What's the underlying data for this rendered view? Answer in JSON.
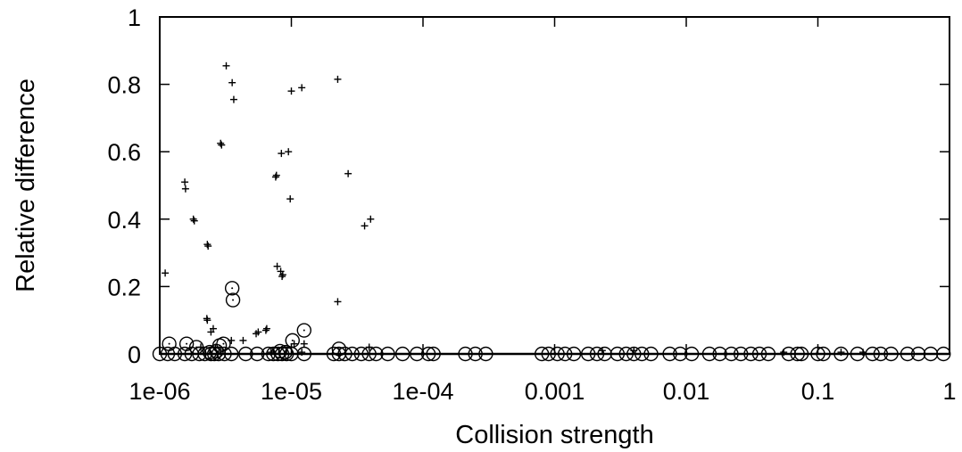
{
  "chart_data": {
    "type": "scatter",
    "xlabel": "Collision strength",
    "ylabel": "Relative difference",
    "xscale": "log",
    "xlim": [
      1e-06,
      1
    ],
    "ylim": [
      0,
      1
    ],
    "x_ticks": [
      {
        "value": 1e-06,
        "label": "1e-06"
      },
      {
        "value": 1e-05,
        "label": "1e-05"
      },
      {
        "value": 0.0001,
        "label": "1e-04"
      },
      {
        "value": 0.001,
        "label": "0.001"
      },
      {
        "value": 0.01,
        "label": "0.01"
      },
      {
        "value": 0.1,
        "label": "0.1"
      },
      {
        "value": 1,
        "label": "1"
      }
    ],
    "y_ticks": [
      {
        "value": 0,
        "label": "0"
      },
      {
        "value": 0.2,
        "label": "0.2"
      },
      {
        "value": 0.4,
        "label": "0.4"
      },
      {
        "value": 0.6,
        "label": "0.6"
      },
      {
        "value": 0.8,
        "label": "0.8"
      },
      {
        "value": 1,
        "label": "1"
      }
    ],
    "grid": false,
    "series": [
      {
        "marker": "plus",
        "points": [
          [
            1.1e-06,
            0.24
          ],
          [
            1.55e-06,
            0.51
          ],
          [
            1.57e-06,
            0.49
          ],
          [
            1.8e-06,
            0.4
          ],
          [
            1.83e-06,
            0.395
          ],
          [
            2.3e-06,
            0.325
          ],
          [
            2.33e-06,
            0.32
          ],
          [
            2.28e-06,
            0.105
          ],
          [
            2.3e-06,
            0.1
          ],
          [
            2.55e-06,
            0.075
          ],
          [
            2.45e-06,
            0.065
          ],
          [
            2.9e-06,
            0.625
          ],
          [
            2.95e-06,
            0.62
          ],
          [
            3.2e-06,
            0.855
          ],
          [
            3.55e-06,
            0.805
          ],
          [
            3.65e-06,
            0.755
          ],
          [
            3.5e-06,
            0.04
          ],
          [
            4.3e-06,
            0.04
          ],
          [
            5.4e-06,
            0.06
          ],
          [
            5.6e-06,
            0.065
          ],
          [
            6.4e-06,
            0.07
          ],
          [
            6.5e-06,
            0.075
          ],
          [
            7.6e-06,
            0.525
          ],
          [
            7.7e-06,
            0.53
          ],
          [
            7.8e-06,
            0.26
          ],
          [
            8.3e-06,
            0.245
          ],
          [
            8.5e-06,
            0.23
          ],
          [
            8.6e-06,
            0.235
          ],
          [
            8.4e-06,
            0.595
          ],
          [
            9.5e-06,
            0.6
          ],
          [
            9.8e-06,
            0.46
          ],
          [
            1e-05,
            0.78
          ],
          [
            1.2e-05,
            0.79
          ],
          [
            2.25e-05,
            0.815
          ],
          [
            2.25e-05,
            0.155
          ],
          [
            2.7e-05,
            0.535
          ],
          [
            3.6e-05,
            0.38
          ],
          [
            4e-05,
            0.4
          ],
          [
            1.05e-05,
            0.03
          ],
          [
            1.25e-05,
            0.03
          ],
          [
            2.05e-06,
            0.02
          ],
          [
            2.65e-06,
            0.02
          ],
          [
            3.9e-05,
            0.02
          ],
          [
            0.0023,
            0.01
          ],
          [
            0.004,
            0.01
          ],
          [
            0.055,
            0.005
          ],
          [
            0.15,
            0.005
          ],
          [
            0.22,
            0.005
          ],
          [
            1.2e-05,
            0.005
          ],
          [
            7e-06,
            0.005
          ]
        ]
      },
      {
        "marker": "circle-dot",
        "points": [
          [
            3.55e-06,
            0.195
          ],
          [
            3.6e-06,
            0.16
          ],
          [
            1.25e-05,
            0.07
          ],
          [
            1.02e-05,
            0.04
          ],
          [
            1.18e-06,
            0.03
          ],
          [
            1.6e-06,
            0.03
          ],
          [
            1.9e-06,
            0.02
          ],
          [
            2.85e-06,
            0.025
          ],
          [
            3.05e-06,
            0.03
          ],
          [
            2.3e-05,
            0.015
          ],
          [
            2.4e-06,
            0.005
          ],
          [
            2.7e-06,
            0.008
          ],
          [
            8.2e-06,
            0.008
          ],
          [
            9e-06,
            0.005
          ],
          [
            1e-06,
            0.0
          ],
          [
            1.15e-06,
            0.0
          ],
          [
            1.3e-06,
            0.0
          ],
          [
            1.55e-06,
            0.0
          ],
          [
            1.75e-06,
            0.0
          ],
          [
            2e-06,
            0.0
          ],
          [
            2.2e-06,
            0.0
          ],
          [
            2.45e-06,
            0.0
          ],
          [
            2.6e-06,
            0.0
          ],
          [
            2.8e-06,
            0.0
          ],
          [
            3.1e-06,
            0.0
          ],
          [
            3.5e-06,
            0.0
          ],
          [
            4.5e-06,
            0.0
          ],
          [
            5.5e-06,
            0.0
          ],
          [
            6.7e-06,
            0.0
          ],
          [
            7.3e-06,
            0.0
          ],
          [
            7.9e-06,
            0.0
          ],
          [
            8.5e-06,
            0.0
          ],
          [
            9.2e-06,
            0.0
          ],
          [
            1e-05,
            0.0
          ],
          [
            1.25e-05,
            0.0
          ],
          [
            2.1e-05,
            0.0
          ],
          [
            2.3e-05,
            0.0
          ],
          [
            2.55e-05,
            0.0
          ],
          [
            2.9e-05,
            0.0
          ],
          [
            3.4e-05,
            0.0
          ],
          [
            3.9e-05,
            0.0
          ],
          [
            4.4e-05,
            0.0
          ],
          [
            5.4e-05,
            0.0
          ],
          [
            7e-05,
            0.0
          ],
          [
            9e-05,
            0.0
          ],
          [
            0.00011,
            0.0
          ],
          [
            0.00012,
            0.0
          ],
          [
            0.00021,
            0.0
          ],
          [
            0.00025,
            0.0
          ],
          [
            0.0003,
            0.0
          ],
          [
            0.0008,
            0.0
          ],
          [
            0.0009,
            0.0
          ],
          [
            0.00105,
            0.0
          ],
          [
            0.0012,
            0.0
          ],
          [
            0.0014,
            0.0
          ],
          [
            0.0018,
            0.0
          ],
          [
            0.0021,
            0.0
          ],
          [
            0.0024,
            0.0
          ],
          [
            0.003,
            0.0
          ],
          [
            0.0035,
            0.0
          ],
          [
            0.004,
            0.0
          ],
          [
            0.0046,
            0.0
          ],
          [
            0.0054,
            0.0
          ],
          [
            0.0075,
            0.0
          ],
          [
            0.009,
            0.0
          ],
          [
            0.011,
            0.0
          ],
          [
            0.015,
            0.0
          ],
          [
            0.018,
            0.0
          ],
          [
            0.022,
            0.0
          ],
          [
            0.026,
            0.0
          ],
          [
            0.031,
            0.0
          ],
          [
            0.036,
            0.0
          ],
          [
            0.042,
            0.0
          ],
          [
            0.06,
            0.0
          ],
          [
            0.07,
            0.0
          ],
          [
            0.075,
            0.0
          ],
          [
            0.1,
            0.0
          ],
          [
            0.11,
            0.0
          ],
          [
            0.15,
            0.0
          ],
          [
            0.2,
            0.0
          ],
          [
            0.26,
            0.0
          ],
          [
            0.3,
            0.0
          ],
          [
            0.36,
            0.0
          ],
          [
            0.48,
            0.0
          ],
          [
            0.58,
            0.0
          ],
          [
            0.72,
            0.0
          ],
          [
            0.9,
            0.0
          ]
        ]
      }
    ]
  }
}
